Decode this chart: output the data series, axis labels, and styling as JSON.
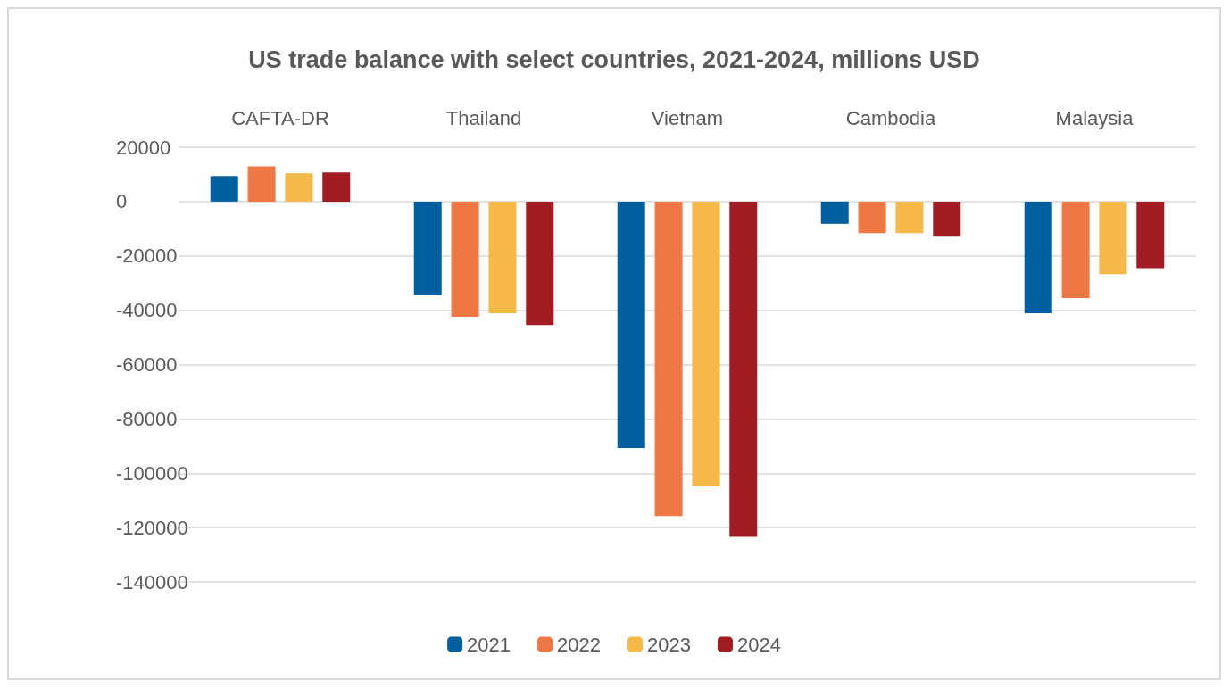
{
  "chart_data": {
    "type": "bar",
    "title": "US trade balance with select countries, 2021-2024, millions USD",
    "categories": [
      "CAFTA-DR",
      "Thailand",
      "Vietnam",
      "Cambodia",
      "Malaysia"
    ],
    "series": [
      {
        "name": "2021",
        "color": "#005f9e",
        "values": [
          9400,
          -34500,
          -90700,
          -8200,
          -41100
        ]
      },
      {
        "name": "2022",
        "color": "#ee7844",
        "values": [
          12900,
          -42400,
          -115800,
          -11600,
          -35500
        ]
      },
      {
        "name": "2023",
        "color": "#f5b94a",
        "values": [
          10400,
          -41100,
          -104800,
          -11600,
          -26700
        ]
      },
      {
        "name": "2024",
        "color": "#a01c22",
        "values": [
          10700,
          -45500,
          -123400,
          -12600,
          -24500
        ]
      }
    ],
    "ylim": [
      -140000,
      20000
    ],
    "yticks": [
      -140000,
      -120000,
      -100000,
      -80000,
      -60000,
      -40000,
      -20000,
      0,
      20000
    ],
    "grid": "y",
    "legend": "bottom"
  }
}
